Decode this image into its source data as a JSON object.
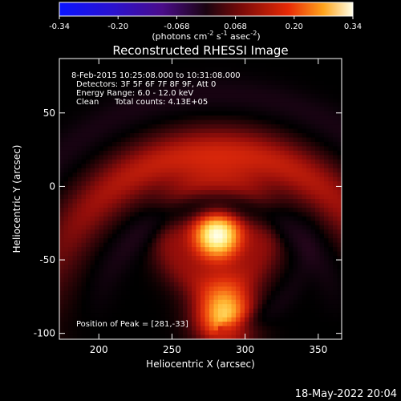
{
  "chart_data": {
    "type": "heatmap",
    "title": "Reconstructed RHESSI Image",
    "xlabel": "Heliocentric X (arcsec)",
    "ylabel": "Heliocentric Y (arcsec)",
    "xlim": [
      173,
      366
    ],
    "ylim": [
      -104,
      87
    ],
    "xticks": [
      200,
      250,
      300,
      350
    ],
    "yticks": [
      50,
      0,
      -50,
      -100
    ],
    "colorbar": {
      "ticks": [
        "-0.34",
        "-0.20",
        "-0.068",
        "0.068",
        "0.20",
        "0.34"
      ],
      "range": [
        -0.34,
        0.34
      ],
      "units_prefix": "(photons cm",
      "exp1": "-2",
      "units_mid": " s",
      "exp2": "-1",
      "units_mid2": " asec",
      "exp3": "-2",
      "units_suffix": ")"
    },
    "info": {
      "time_range": "8-Feb-2015 10:25:08.000 to 10:31:08.000",
      "detectors": "Detectors: 3F 5F 6F 7F 8F 9F, Att 0",
      "energy": "Energy Range: 6.0 - 12.0 keV",
      "method": "Clean",
      "counts": "Total counts: 4.13E+05",
      "peak": "Position of Peak = [281,-33]"
    },
    "peak": [
      281,
      -33
    ],
    "sources": [
      {
        "x": 281,
        "y": -33,
        "amp": 0.34,
        "sigma": 13
      },
      {
        "x": 286,
        "y": -88,
        "amp": 0.26,
        "sigma": 14
      }
    ],
    "footer_date": "18-May-2022 20:04"
  }
}
